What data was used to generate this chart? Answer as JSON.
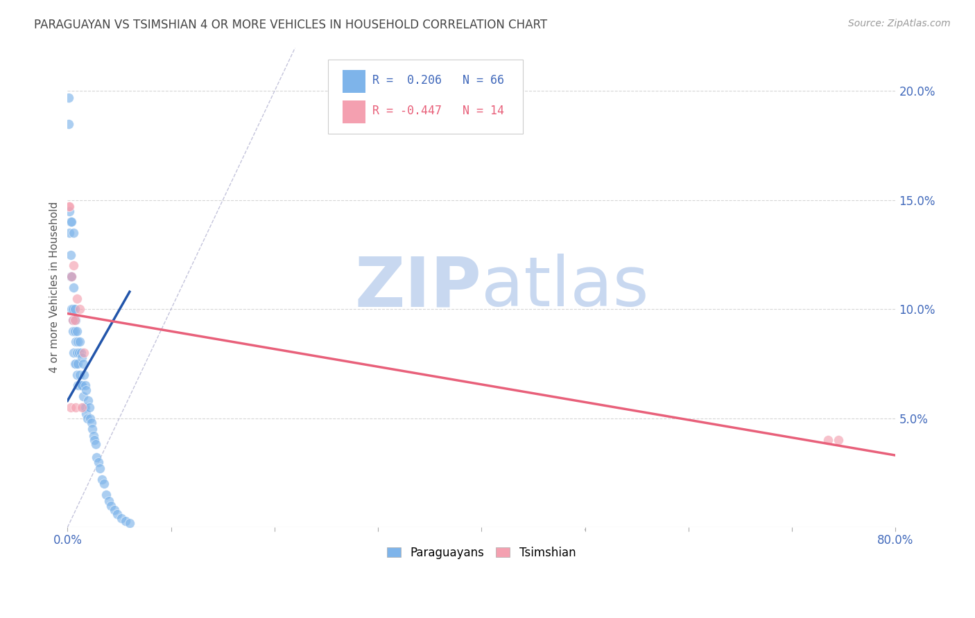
{
  "title": "PARAGUAYAN VS TSIMSHIAN 4 OR MORE VEHICLES IN HOUSEHOLD CORRELATION CHART",
  "source": "Source: ZipAtlas.com",
  "ylabel": "4 or more Vehicles in Household",
  "xlim": [
    0.0,
    0.8
  ],
  "ylim": [
    0.0,
    0.22
  ],
  "xtick_positions": [
    0.0,
    0.1,
    0.2,
    0.3,
    0.4,
    0.5,
    0.6,
    0.7,
    0.8
  ],
  "xtick_show": [
    "0.0%",
    "",
    "",
    "",
    "",
    "",
    "",
    "",
    "80.0%"
  ],
  "yticks_right": [
    0.05,
    0.1,
    0.15,
    0.2
  ],
  "ytick_labels_right": [
    "5.0%",
    "10.0%",
    "15.0%",
    "20.0%"
  ],
  "paraguayan_color": "#7EB4EA",
  "tsimshian_color": "#F4A0B0",
  "paraguayan_R": 0.206,
  "paraguayan_N": 66,
  "tsimshian_R": -0.447,
  "tsimshian_N": 14,
  "blue_line_color": "#2255AA",
  "pink_line_color": "#E8607A",
  "ref_line_color": "#AAAACC",
  "watermark_zip": "ZIP",
  "watermark_atlas": "atlas",
  "watermark_color_zip": "#C8D8F0",
  "watermark_color_atlas": "#C8D8F0",
  "background_color": "#FFFFFF",
  "grid_color": "#CCCCCC",
  "title_color": "#444444",
  "axis_label_color": "#555555",
  "right_tick_color": "#4169BB",
  "legend_R_blue_color": "#4169BB",
  "legend_R_pink_color": "#E8607A",
  "paraguayan_x": [
    0.001,
    0.001,
    0.002,
    0.002,
    0.003,
    0.003,
    0.003,
    0.004,
    0.004,
    0.004,
    0.005,
    0.005,
    0.005,
    0.006,
    0.006,
    0.006,
    0.007,
    0.007,
    0.007,
    0.008,
    0.008,
    0.008,
    0.009,
    0.009,
    0.009,
    0.01,
    0.01,
    0.01,
    0.011,
    0.011,
    0.012,
    0.012,
    0.013,
    0.013,
    0.014,
    0.014,
    0.015,
    0.015,
    0.016,
    0.016,
    0.017,
    0.017,
    0.018,
    0.018,
    0.019,
    0.02,
    0.021,
    0.022,
    0.023,
    0.024,
    0.025,
    0.026,
    0.027,
    0.028,
    0.03,
    0.031,
    0.033,
    0.035,
    0.037,
    0.04,
    0.042,
    0.045,
    0.048,
    0.052,
    0.056,
    0.06
  ],
  "paraguayan_y": [
    0.197,
    0.185,
    0.145,
    0.135,
    0.14,
    0.125,
    0.115,
    0.14,
    0.115,
    0.1,
    0.1,
    0.09,
    0.095,
    0.135,
    0.11,
    0.08,
    0.1,
    0.09,
    0.075,
    0.095,
    0.085,
    0.075,
    0.09,
    0.08,
    0.07,
    0.085,
    0.075,
    0.065,
    0.08,
    0.065,
    0.085,
    0.07,
    0.08,
    0.065,
    0.078,
    0.065,
    0.075,
    0.06,
    0.07,
    0.055,
    0.065,
    0.055,
    0.063,
    0.052,
    0.05,
    0.058,
    0.055,
    0.05,
    0.048,
    0.045,
    0.042,
    0.04,
    0.038,
    0.032,
    0.03,
    0.027,
    0.022,
    0.02,
    0.015,
    0.012,
    0.01,
    0.008,
    0.006,
    0.004,
    0.003,
    0.002
  ],
  "tsimshian_x": [
    0.001,
    0.002,
    0.003,
    0.004,
    0.005,
    0.006,
    0.007,
    0.008,
    0.009,
    0.012,
    0.014,
    0.016,
    0.735,
    0.745
  ],
  "tsimshian_y": [
    0.147,
    0.147,
    0.055,
    0.115,
    0.095,
    0.12,
    0.095,
    0.055,
    0.105,
    0.1,
    0.055,
    0.08,
    0.04,
    0.04
  ],
  "blue_trend_x": [
    0.0,
    0.06
  ],
  "blue_trend_y": [
    0.058,
    0.108
  ],
  "pink_trend_x": [
    0.0,
    0.8
  ],
  "pink_trend_y": [
    0.098,
    0.033
  ],
  "ref_line_x": [
    0.0,
    0.22
  ],
  "ref_line_y": [
    0.0,
    0.22
  ]
}
